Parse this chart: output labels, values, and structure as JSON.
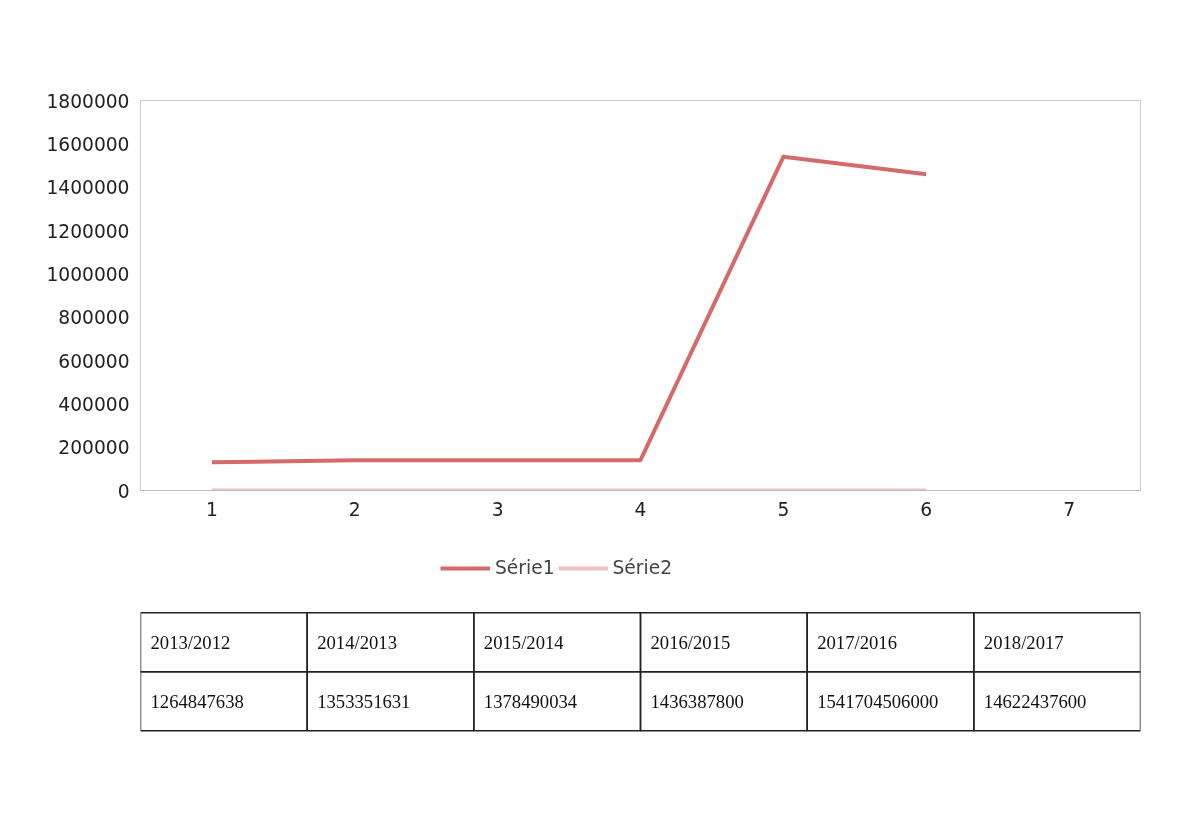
{
  "chart_data": {
    "type": "line",
    "categories": [
      "1",
      "2",
      "3",
      "4",
      "5",
      "6",
      "7"
    ],
    "series": [
      {
        "name": "Série1",
        "color": "#d46a6a",
        "values": [
          130000,
          140000,
          140000,
          140000,
          1540000,
          1460000,
          null
        ]
      },
      {
        "name": "Série2",
        "color": "#f0c0c0",
        "values": [
          0,
          0,
          0,
          0,
          0,
          0,
          null
        ]
      }
    ],
    "ylim": [
      0,
      1800000
    ],
    "yticks": [
      0,
      200000,
      400000,
      600000,
      800000,
      1000000,
      1200000,
      1400000,
      1600000,
      1800000
    ],
    "grid": false,
    "legend": "bottom",
    "marker": "none",
    "line_style": "solid",
    "annotations": [
      "2013/2012",
      "2014/2013",
      "2015/2014",
      "2016/2015",
      "2017/2016",
      "2018/2017",
      "1264847638",
      "1353351631",
      "1378490034",
      "1436387800",
      "1541704506000",
      "14622437600"
    ]
  }
}
